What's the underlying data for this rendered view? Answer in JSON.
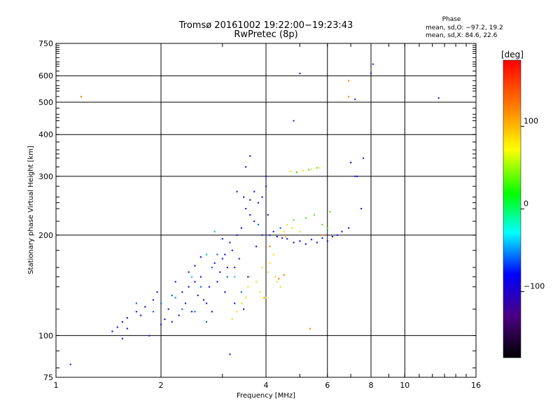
{
  "chart_data": {
    "type": "scatter",
    "title": "Tromsø 20161002 19:22:00−19:23:43",
    "subtitle": "RwPretec (8p)",
    "xlabel": "Frequency [MHz]",
    "ylabel": "Stationary phase Virtual Height [km]",
    "xscale": "log",
    "yscale": "log",
    "xlim": [
      1,
      16
    ],
    "ylim": [
      75,
      750
    ],
    "x_ticks": [
      1,
      2,
      4,
      6,
      8,
      10,
      16
    ],
    "x_tick_labels": [
      "1",
      "2",
      "4",
      "6",
      "8",
      "10",
      "16"
    ],
    "y_ticks": [
      75,
      100,
      200,
      300,
      400,
      500,
      600,
      750
    ],
    "y_tick_labels": [
      "75",
      "100",
      "200",
      "300",
      "400",
      "500",
      "600",
      "750"
    ],
    "grid": true,
    "stats": {
      "heading": "Phase",
      "line1": "mean, sd,O: −97.2, 19.2",
      "line2": "mean, sd,X:  84.6, 22.6"
    },
    "colorbar": {
      "label": "[deg]",
      "range": [
        -180,
        180
      ],
      "ticks": [
        100,
        0,
        -100
      ],
      "tick_labels": [
        "100",
        "0",
        "−100"
      ],
      "colormap": [
        "#ff0000",
        "#ff8000",
        "#ffff00",
        "#00ff00",
        "#00ffff",
        "#0000ff",
        "#4b0082",
        "#000000"
      ]
    },
    "series": [
      {
        "phase_deg": -100,
        "color": "#2020e0",
        "points": [
          [
            1.45,
            103
          ],
          [
            1.5,
            106
          ],
          [
            1.55,
            110
          ],
          [
            1.6,
            113
          ],
          [
            1.7,
            118
          ],
          [
            1.8,
            122
          ],
          [
            1.9,
            128
          ],
          [
            2.0,
            108
          ],
          [
            2.05,
            112
          ],
          [
            2.1,
            120
          ],
          [
            2.2,
            130
          ],
          [
            2.3,
            135
          ],
          [
            2.4,
            140
          ],
          [
            2.5,
            145
          ],
          [
            2.6,
            150
          ],
          [
            2.7,
            125
          ],
          [
            2.8,
            118
          ],
          [
            3.0,
            170
          ],
          [
            3.1,
            160
          ],
          [
            3.2,
            180
          ],
          [
            3.3,
            200
          ],
          [
            3.4,
            210
          ],
          [
            3.5,
            240
          ],
          [
            3.6,
            230
          ],
          [
            3.7,
            220
          ],
          [
            3.8,
            250
          ],
          [
            3.9,
            260
          ],
          [
            4.0,
            300
          ],
          [
            4.0,
            280
          ],
          [
            4.1,
            200
          ],
          [
            4.3,
            198
          ],
          [
            4.6,
            195
          ],
          [
            5.0,
            192
          ],
          [
            5.4,
            194
          ],
          [
            5.8,
            196
          ],
          [
            6.2,
            198
          ],
          [
            6.6,
            205
          ],
          [
            3.6,
            345
          ],
          [
            3.5,
            320
          ],
          [
            1.6,
            105
          ],
          [
            1.75,
            115
          ],
          [
            1.95,
            135
          ],
          [
            2.15,
            110
          ],
          [
            2.35,
            125
          ],
          [
            2.55,
            132
          ],
          [
            2.75,
            140
          ],
          [
            2.95,
            155
          ],
          [
            3.15,
            190
          ],
          [
            3.35,
            170
          ],
          [
            3.55,
            150
          ],
          [
            2.9,
            145
          ],
          [
            3.05,
            135
          ],
          [
            3.25,
            125
          ],
          [
            3.45,
            120
          ],
          [
            1.85,
            100
          ],
          [
            2.25,
            115
          ],
          [
            2.45,
            118
          ],
          [
            2.65,
            128
          ],
          [
            3.75,
            185
          ],
          [
            3.9,
            200
          ],
          [
            4.05,
            230
          ],
          [
            4.2,
            205
          ],
          [
            4.45,
            196
          ],
          [
            4.8,
            190
          ],
          [
            5.2,
            188
          ],
          [
            5.6,
            190
          ],
          [
            6.0,
            192
          ],
          [
            6.4,
            200
          ],
          [
            6.9,
            210
          ],
          [
            7.5,
            240
          ],
          [
            7.0,
            330
          ],
          [
            7.3,
            300
          ],
          [
            3.3,
            270
          ],
          [
            3.45,
            260
          ],
          [
            3.6,
            255
          ],
          [
            3.25,
            160
          ],
          [
            3.05,
            175
          ],
          [
            2.85,
            165
          ],
          [
            2.6,
            172
          ],
          [
            2.4,
            155
          ],
          [
            1.55,
            98
          ],
          [
            2.2,
            145
          ],
          [
            2.5,
            162
          ],
          [
            3.0,
            195
          ],
          [
            3.7,
            270
          ]
        ]
      },
      {
        "phase_deg": -80,
        "color": "#1a6ad8",
        "points": [
          [
            1.7,
            125
          ],
          [
            2.0,
            125
          ],
          [
            2.3,
            120
          ],
          [
            2.6,
            140
          ],
          [
            2.8,
            160
          ],
          [
            2.9,
            175
          ],
          [
            3.1,
            150
          ],
          [
            3.4,
            135
          ],
          [
            2.7,
            110
          ],
          [
            2.5,
            118
          ],
          [
            3.8,
            215
          ],
          [
            4.4,
            210
          ],
          [
            1.9,
            118
          ],
          [
            2.15,
            132
          ]
        ]
      },
      {
        "phase_deg": -50,
        "color": "#20c0e0",
        "points": [
          [
            2.2,
            130
          ],
          [
            2.45,
            150
          ],
          [
            2.7,
            175
          ],
          [
            2.85,
            205
          ],
          [
            3.25,
            150
          ]
        ]
      },
      {
        "phase_deg": 100,
        "color": "#f0e020",
        "points": [
          [
            3.6,
            150
          ],
          [
            3.75,
            145
          ],
          [
            3.9,
            160
          ],
          [
            4.05,
            155
          ],
          [
            4.25,
            150
          ],
          [
            4.4,
            140
          ],
          [
            3.5,
            130
          ],
          [
            3.4,
            125
          ],
          [
            3.3,
            118
          ],
          [
            3.2,
            112
          ],
          [
            4.1,
            165
          ],
          [
            4.2,
            175
          ],
          [
            4.5,
            205
          ],
          [
            4.6,
            215
          ],
          [
            4.75,
            210
          ],
          [
            5.0,
            205
          ],
          [
            4.7,
            310
          ],
          [
            4.9,
            310
          ],
          [
            5.1,
            312
          ],
          [
            5.4,
            315
          ],
          [
            5.7,
            318
          ],
          [
            3.55,
            140
          ],
          [
            3.85,
            135
          ],
          [
            4.0,
            130
          ],
          [
            4.3,
            145
          ],
          [
            4.55,
            198
          ]
        ]
      },
      {
        "phase_deg": 30,
        "color": "#60e040",
        "points": [
          [
            4.9,
            308
          ],
          [
            5.3,
            314
          ],
          [
            5.6,
            318
          ],
          [
            5.8,
            215
          ],
          [
            6.0,
            210
          ],
          [
            5.5,
            230
          ],
          [
            4.8,
            222
          ],
          [
            5.2,
            225
          ],
          [
            6.1,
            235
          ]
        ]
      },
      {
        "phase_deg": 140,
        "color": "#ff8c00",
        "points": [
          [
            1.18,
            520
          ],
          [
            5.35,
            105
          ],
          [
            6.9,
            580
          ],
          [
            6.9,
            520
          ],
          [
            4.35,
            148
          ],
          [
            4.5,
            152
          ],
          [
            5.8,
            200
          ],
          [
            3.95,
            130
          ],
          [
            4.1,
            185
          ]
        ]
      },
      {
        "phase_deg": -90,
        "color": "#3030f0",
        "points": [
          [
            1.1,
            82
          ],
          [
            3.15,
            88
          ],
          [
            5.0,
            610
          ],
          [
            4.8,
            440
          ],
          [
            7.2,
            510
          ],
          [
            8.0,
            610
          ],
          [
            8.1,
            650
          ],
          [
            12.5,
            515
          ],
          [
            7.6,
            340
          ],
          [
            7.2,
            300
          ]
        ]
      }
    ]
  }
}
